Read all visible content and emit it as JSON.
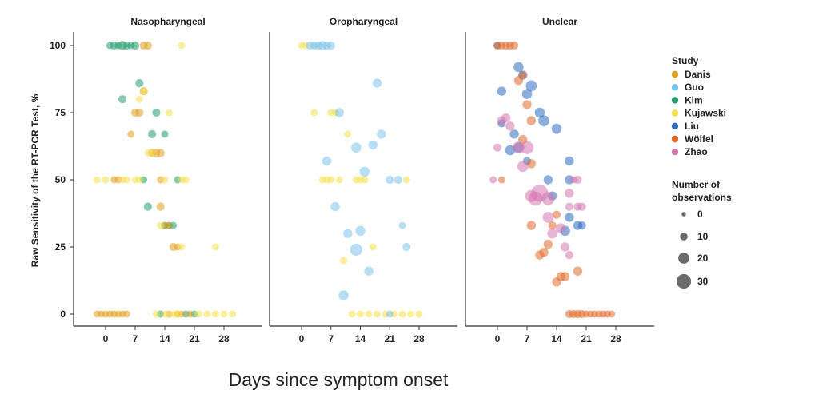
{
  "chart_data": {
    "type": "scatter",
    "panels": [
      {
        "title": "Nasopharyngeal"
      },
      {
        "title": "Oropharyngeal"
      },
      {
        "title": "Unclear"
      }
    ],
    "xlabel": "Days since symptom onset",
    "ylabel": "Raw Sensitivity of the RT-PCR Test, %",
    "x_ticks": [
      0,
      7,
      14,
      21,
      28
    ],
    "y_ticks": [
      0,
      25,
      50,
      75,
      100
    ],
    "xlim": [
      -3,
      32
    ],
    "ylim": [
      -5,
      105
    ],
    "legend": {
      "title": "Study",
      "entries": [
        "Danis",
        "Guo",
        "Kim",
        "Kujawski",
        "Liu",
        "Wölfel",
        "Zhao"
      ],
      "colors": [
        "#e0a020",
        "#7cc3ea",
        "#1f9c6a",
        "#f6e04a",
        "#2d6cc0",
        "#e06a2a",
        "#d676b0"
      ],
      "size_title_line1": "Number of",
      "size_title_line2": "observations",
      "size_values": [
        0,
        10,
        20,
        30
      ],
      "size_labels": [
        "0",
        "10",
        "20",
        "30"
      ],
      "placement": "right"
    },
    "series": [
      {
        "panel": 0,
        "name": "Kim",
        "points": [
          [
            1,
            100,
            3
          ],
          [
            2,
            100,
            4
          ],
          [
            3,
            100,
            3
          ],
          [
            4,
            100,
            5
          ],
          [
            5,
            100,
            4
          ],
          [
            6,
            100,
            3
          ],
          [
            7,
            100,
            4
          ],
          [
            4,
            80,
            4
          ],
          [
            8,
            86,
            4
          ],
          [
            12,
            75,
            4
          ],
          [
            11,
            67,
            4
          ],
          [
            14,
            67,
            3
          ],
          [
            9,
            50,
            3
          ],
          [
            17,
            50,
            3
          ],
          [
            10,
            40,
            4
          ],
          [
            14,
            33,
            3
          ],
          [
            15,
            33,
            3
          ],
          [
            16,
            33,
            3
          ],
          [
            13,
            0,
            3
          ],
          [
            19,
            0,
            3
          ],
          [
            21,
            0,
            3
          ]
        ]
      },
      {
        "panel": 0,
        "name": "Danis",
        "points": [
          [
            9,
            100,
            4
          ],
          [
            10,
            100,
            4
          ],
          [
            9,
            83,
            4
          ],
          [
            7,
            75,
            4
          ],
          [
            8,
            75,
            4
          ],
          [
            6,
            67,
            3
          ],
          [
            11,
            60,
            4
          ],
          [
            12,
            60,
            4
          ],
          [
            13,
            60,
            4
          ],
          [
            2,
            50,
            3
          ],
          [
            3,
            50,
            3
          ],
          [
            13,
            50,
            3
          ],
          [
            13,
            40,
            4
          ],
          [
            14,
            33,
            3
          ],
          [
            15,
            33,
            3
          ],
          [
            16,
            25,
            4
          ],
          [
            17,
            25,
            3
          ],
          [
            -2,
            0,
            3
          ],
          [
            -1,
            0,
            3
          ],
          [
            0,
            0,
            3
          ],
          [
            1,
            0,
            3
          ],
          [
            2,
            0,
            3
          ],
          [
            3,
            0,
            3
          ],
          [
            4,
            0,
            3
          ],
          [
            5,
            0,
            3
          ],
          [
            15,
            0,
            3
          ],
          [
            17,
            0,
            3
          ],
          [
            18,
            0,
            3
          ],
          [
            20,
            0,
            3
          ]
        ]
      },
      {
        "panel": 0,
        "name": "Kujawski",
        "points": [
          [
            18,
            100,
            3
          ],
          [
            8,
            80,
            3
          ],
          [
            9,
            83,
            3
          ],
          [
            15,
            75,
            3
          ],
          [
            10,
            60,
            3
          ],
          [
            11,
            60,
            3
          ],
          [
            14,
            50,
            3
          ],
          [
            18,
            50,
            3
          ],
          [
            19,
            50,
            3
          ],
          [
            -2,
            50,
            3
          ],
          [
            0,
            50,
            3
          ],
          [
            4,
            50,
            3
          ],
          [
            5,
            50,
            3
          ],
          [
            7,
            50,
            3
          ],
          [
            8,
            50,
            3
          ],
          [
            13,
            33,
            3
          ],
          [
            18,
            25,
            3
          ],
          [
            26,
            25,
            3
          ],
          [
            12,
            0,
            3
          ],
          [
            14,
            0,
            3
          ],
          [
            16,
            0,
            3
          ],
          [
            17,
            0,
            3
          ],
          [
            22,
            0,
            3
          ],
          [
            24,
            0,
            3
          ],
          [
            26,
            0,
            3
          ],
          [
            28,
            0,
            3
          ],
          [
            30,
            0,
            3
          ]
        ]
      },
      {
        "panel": 1,
        "name": "Kujawski",
        "points": [
          [
            0,
            100,
            3
          ],
          [
            1,
            100,
            3
          ],
          [
            3,
            75,
            3
          ],
          [
            7,
            75,
            3
          ],
          [
            8,
            75,
            3
          ],
          [
            11,
            67,
            3
          ],
          [
            5,
            50,
            3
          ],
          [
            6,
            50,
            3
          ],
          [
            7,
            50,
            3
          ],
          [
            9,
            50,
            3
          ],
          [
            13,
            50,
            3
          ],
          [
            14,
            50,
            3
          ],
          [
            15,
            50,
            3
          ],
          [
            25,
            50,
            3
          ],
          [
            10,
            20,
            3
          ],
          [
            17,
            25,
            3
          ],
          [
            12,
            0,
            3
          ],
          [
            14,
            0,
            3
          ],
          [
            16,
            0,
            3
          ],
          [
            18,
            0,
            3
          ],
          [
            20,
            0,
            3
          ],
          [
            22,
            0,
            3
          ],
          [
            24,
            0,
            3
          ],
          [
            26,
            0,
            3
          ],
          [
            28,
            0,
            3
          ]
        ]
      },
      {
        "panel": 1,
        "name": "Guo",
        "points": [
          [
            2,
            100,
            4
          ],
          [
            3,
            100,
            4
          ],
          [
            4,
            100,
            4
          ],
          [
            5,
            100,
            5
          ],
          [
            6,
            100,
            4
          ],
          [
            7,
            100,
            4
          ],
          [
            18,
            86,
            5
          ],
          [
            9,
            75,
            5
          ],
          [
            19,
            67,
            5
          ],
          [
            17,
            63,
            5
          ],
          [
            13,
            62,
            6
          ],
          [
            6,
            57,
            5
          ],
          [
            15,
            53,
            6
          ],
          [
            21,
            50,
            4
          ],
          [
            23,
            50,
            4
          ],
          [
            8,
            40,
            5
          ],
          [
            14,
            31,
            6
          ],
          [
            11,
            30,
            5
          ],
          [
            13,
            24,
            8
          ],
          [
            24,
            33,
            3
          ],
          [
            25,
            25,
            4
          ],
          [
            16,
            16,
            5
          ],
          [
            10,
            7,
            6
          ],
          [
            21,
            0,
            3
          ]
        ]
      },
      {
        "panel": 2,
        "name": "Liu",
        "points": [
          [
            0,
            100,
            3
          ],
          [
            1,
            83,
            5
          ],
          [
            5,
            92,
            6
          ],
          [
            6,
            89,
            5
          ],
          [
            8,
            85,
            7
          ],
          [
            7,
            82,
            6
          ],
          [
            10,
            75,
            6
          ],
          [
            11,
            72,
            7
          ],
          [
            1,
            71,
            4
          ],
          [
            4,
            67,
            5
          ],
          [
            14,
            69,
            6
          ],
          [
            7,
            57,
            4
          ],
          [
            3,
            61,
            6
          ],
          [
            5,
            62,
            6
          ],
          [
            17,
            57,
            5
          ],
          [
            17,
            50,
            5
          ],
          [
            12,
            50,
            5
          ],
          [
            13,
            44,
            5
          ],
          [
            17,
            36,
            5
          ],
          [
            16,
            31,
            6
          ],
          [
            19,
            33,
            5
          ],
          [
            20,
            33,
            4
          ]
        ]
      },
      {
        "panel": 2,
        "name": "Wölfel",
        "points": [
          [
            0,
            100,
            4
          ],
          [
            1,
            100,
            4
          ],
          [
            2,
            100,
            4
          ],
          [
            3,
            100,
            4
          ],
          [
            4,
            100,
            4
          ],
          [
            5,
            87,
            5
          ],
          [
            6,
            89,
            4
          ],
          [
            7,
            78,
            5
          ],
          [
            8,
            72,
            5
          ],
          [
            6,
            65,
            5
          ],
          [
            8,
            56,
            5
          ],
          [
            1,
            50,
            3
          ],
          [
            14,
            37,
            4
          ],
          [
            13,
            33,
            4
          ],
          [
            8,
            33,
            5
          ],
          [
            10,
            22,
            5
          ],
          [
            11,
            23,
            5
          ],
          [
            12,
            26,
            5
          ],
          [
            14,
            12,
            5
          ],
          [
            15,
            14,
            5
          ],
          [
            16,
            14,
            5
          ],
          [
            19,
            16,
            5
          ],
          [
            17,
            0,
            4
          ],
          [
            18,
            0,
            4
          ],
          [
            19,
            0,
            4
          ],
          [
            20,
            0,
            4
          ],
          [
            21,
            0,
            3
          ],
          [
            22,
            0,
            3
          ],
          [
            23,
            0,
            3
          ],
          [
            24,
            0,
            3
          ],
          [
            25,
            0,
            3
          ],
          [
            26,
            0,
            3
          ],
          [
            27,
            0,
            3
          ]
        ]
      },
      {
        "panel": 2,
        "name": "Zhao",
        "points": [
          [
            1,
            72,
            5
          ],
          [
            2,
            73,
            5
          ],
          [
            3,
            70,
            5
          ],
          [
            0,
            62,
            4
          ],
          [
            5,
            62,
            8
          ],
          [
            7,
            62,
            9
          ],
          [
            6,
            55,
            7
          ],
          [
            18,
            50,
            3
          ],
          [
            19,
            50,
            4
          ],
          [
            -1,
            50,
            3
          ],
          [
            8,
            44,
            8
          ],
          [
            9,
            43,
            10
          ],
          [
            10,
            45,
            13
          ],
          [
            12,
            43,
            9
          ],
          [
            12,
            36,
            7
          ],
          [
            13,
            30,
            6
          ],
          [
            15,
            32,
            6
          ],
          [
            16,
            25,
            5
          ],
          [
            17,
            45,
            5
          ],
          [
            17,
            40,
            4
          ],
          [
            19,
            40,
            4
          ],
          [
            20,
            40,
            4
          ],
          [
            17,
            22,
            4
          ]
        ]
      }
    ]
  }
}
